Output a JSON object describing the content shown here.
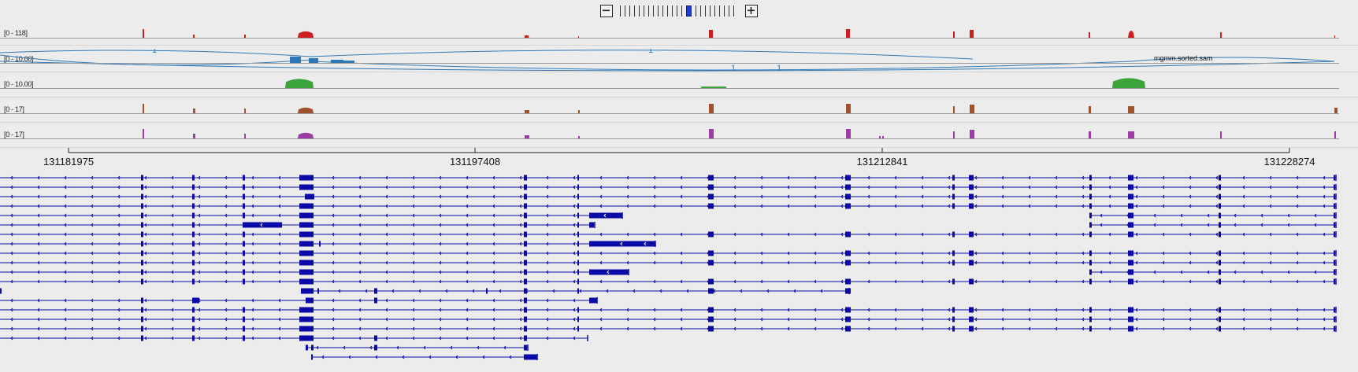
{
  "zoom": {
    "minus_symbol": "−",
    "plus_symbol": "+",
    "level": 14,
    "levels": 25
  },
  "tracks": [
    {
      "id": "coverage-1",
      "range": "[0 - 118]",
      "color": "#cc1f1f"
    },
    {
      "id": "sashimi",
      "range": "[0 - 10.00]",
      "color": "#2f78b8",
      "file": "mgmm.sorted.sam",
      "junction_labels": [
        "1",
        "1",
        "1",
        "1"
      ]
    },
    {
      "id": "coverage-2",
      "range": "[0 - 10.00]",
      "color": "#3aa33a"
    },
    {
      "id": "coverage-3",
      "range": "[0 - 17]",
      "color": "#a0522d"
    },
    {
      "id": "coverage-4",
      "range": "[0 - 17]",
      "color": "#9b3da5"
    }
  ],
  "ruler": {
    "positions": [
      "131181975",
      "131197408",
      "131212841",
      "131228274"
    ]
  },
  "genes": {
    "color": "#0a0aa8",
    "transcript_count": 20
  }
}
